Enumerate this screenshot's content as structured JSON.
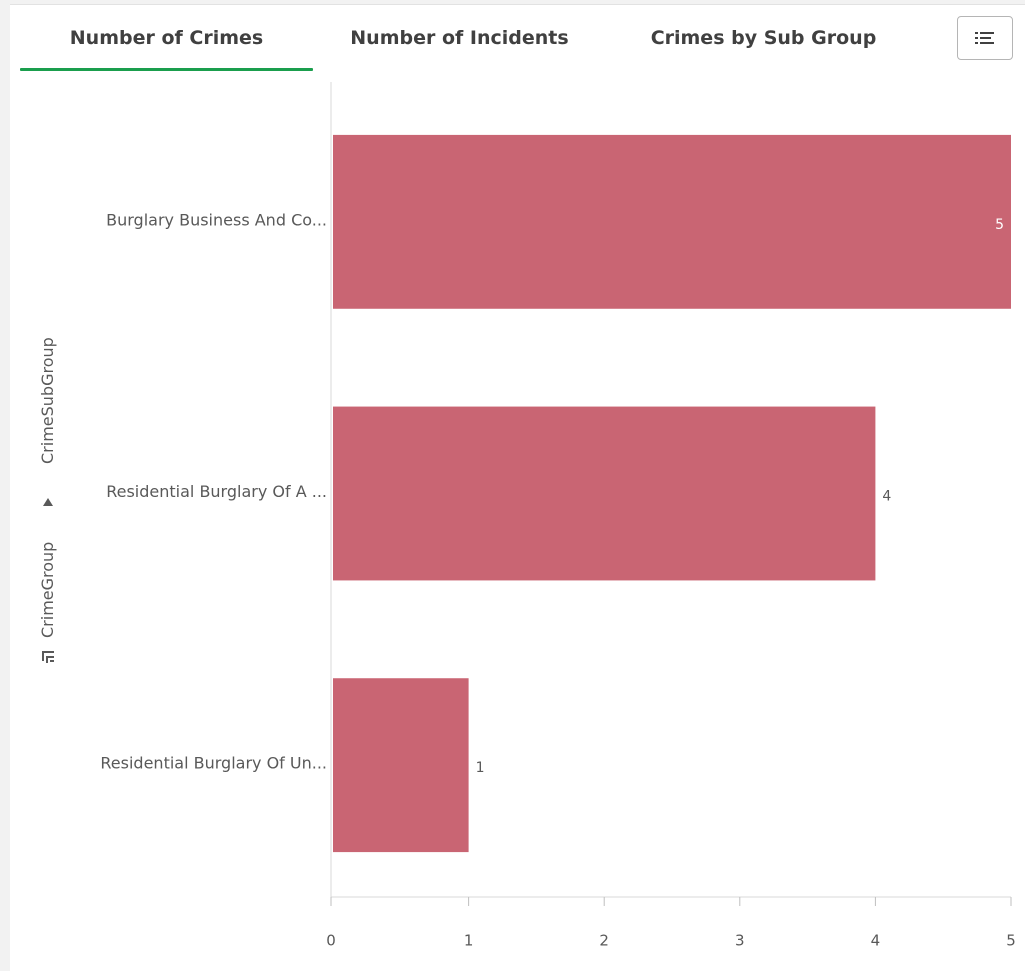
{
  "tabs": [
    {
      "label": "Number of Crimes",
      "active": true
    },
    {
      "label": "Number of Incidents",
      "active": false
    },
    {
      "label": "Crimes by Sub Group",
      "active": false
    }
  ],
  "toolbar": {
    "menu_icon": "list-menu-icon"
  },
  "dimension_path": {
    "primary": "CrimeSubGroup",
    "secondary": "CrimeGroup",
    "drill_icon": "drill-down-icon",
    "arrow_icon": "triangle-up-icon"
  },
  "colors": {
    "bar": "#c96573",
    "active_tab": "#1a9e4d",
    "axis": "#d9d9d9",
    "text": "#595959"
  },
  "chart_data": {
    "type": "bar",
    "orientation": "horizontal",
    "categories": [
      "Burglary Business And Co...",
      "Residential Burglary Of A ...",
      "Residential Burglary Of Un..."
    ],
    "values": [
      5,
      4,
      1
    ],
    "value_labels": [
      "5",
      "4",
      "1"
    ],
    "xlim": [
      0,
      5
    ],
    "xticks": [
      0,
      1,
      2,
      3,
      4,
      5
    ],
    "xtick_labels": [
      "0",
      "1",
      "2",
      "3",
      "4",
      "5"
    ],
    "grid": false,
    "legend": "none"
  }
}
